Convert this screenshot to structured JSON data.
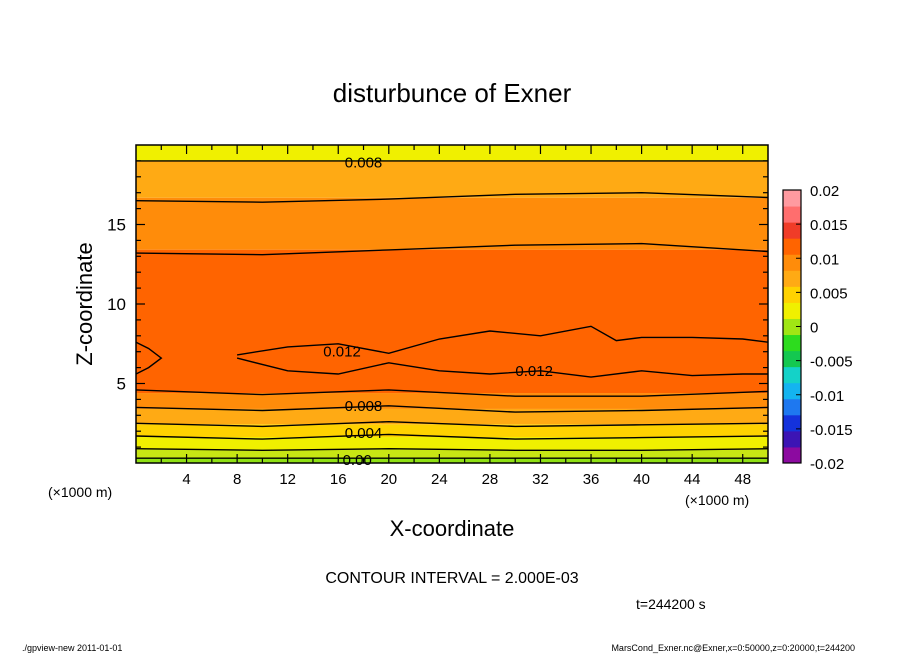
{
  "chart_data": {
    "type": "contour",
    "title": "disturbunce of Exner",
    "xlabel": "X-coordinate",
    "ylabel": "Z-coordinate",
    "x_unit": "(×1000 m)",
    "y_unit": "(×1000 m)",
    "xlim": [
      0,
      50
    ],
    "ylim": [
      0,
      20
    ],
    "x_ticks": [
      4,
      8,
      12,
      16,
      20,
      24,
      28,
      32,
      36,
      40,
      44,
      48
    ],
    "y_ticks": [
      5,
      10,
      15
    ],
    "contour_interval_text": "CONTOUR INTERVAL = 2.000E-03",
    "time_text": "t=244200 s",
    "colorbar": {
      "min": -0.02,
      "max": 0.02,
      "tick_labels": [
        "0.02",
        "0.015",
        "0.01",
        "0.005",
        "0",
        "-0.005",
        "-0.01",
        "-0.015",
        "-0.02"
      ],
      "colors": [
        "#8c0aa0",
        "#3c14b4",
        "#1432dc",
        "#1e78f0",
        "#14b4f0",
        "#14d2c8",
        "#14c850",
        "#2ddc1e",
        "#a0e614",
        "#f0f000",
        "#ffd200",
        "#ffaa14",
        "#ff8c0a",
        "#ff6400",
        "#f03c28",
        "#ff6e6e",
        "#ff9aa0"
      ]
    },
    "contour_labels": [
      {
        "text": "0.008",
        "x": 18.0,
        "z": 18.9
      },
      {
        "text": "0.012",
        "x": 16.3,
        "z": 7.0
      },
      {
        "text": "0.012",
        "x": 31.5,
        "z": 5.8
      },
      {
        "text": "0.008",
        "x": 18.0,
        "z": 3.6
      },
      {
        "text": "0.004",
        "x": 18.0,
        "z": 1.9
      },
      {
        "text": "0.00",
        "x": 17.5,
        "z": 0.2
      }
    ],
    "levels": [
      0.0,
      0.002,
      0.004,
      0.006,
      0.008,
      0.01,
      0.012,
      0.014
    ],
    "bands_bottom_to_top": [
      {
        "value": 0.001,
        "color": "#8fe014"
      },
      {
        "value": 0.003,
        "color": "#c8e614"
      },
      {
        "value": 0.005,
        "color": "#f0f000"
      },
      {
        "value": 0.007,
        "color": "#ffd200"
      },
      {
        "value": 0.009,
        "color": "#ffaa14"
      },
      {
        "value": 0.011,
        "color": "#ff8c0a"
      },
      {
        "value": 0.013,
        "color": "#ff6400"
      },
      {
        "value": 0.011,
        "color": "#ff8c0a"
      },
      {
        "value": 0.009,
        "color": "#ffaa14"
      },
      {
        "value": 0.007,
        "color": "#ffd200"
      },
      {
        "value": 0.005,
        "color": "#f0f000"
      }
    ],
    "contour_lines": [
      {
        "level": 0.0,
        "x": [
          0,
          50
        ],
        "z": [
          0.3,
          0.3
        ]
      },
      {
        "level": 0.002,
        "x": [
          0,
          10,
          20,
          30,
          40,
          50
        ],
        "z": [
          0.9,
          0.8,
          0.9,
          0.8,
          0.8,
          0.9
        ]
      },
      {
        "level": 0.004,
        "x": [
          0,
          10,
          20,
          30,
          40,
          50
        ],
        "z": [
          1.7,
          1.5,
          1.8,
          1.5,
          1.6,
          1.7
        ]
      },
      {
        "level": 0.006,
        "x": [
          0,
          10,
          20,
          30,
          40,
          50
        ],
        "z": [
          2.5,
          2.3,
          2.6,
          2.3,
          2.4,
          2.5
        ]
      },
      {
        "level": 0.008,
        "x": [
          0,
          10,
          20,
          30,
          40,
          50
        ],
        "z": [
          3.5,
          3.3,
          3.6,
          3.2,
          3.3,
          3.5
        ]
      },
      {
        "level": 0.01,
        "x": [
          0,
          10,
          20,
          30,
          40,
          50
        ],
        "z": [
          4.6,
          4.3,
          4.6,
          4.2,
          4.2,
          4.5
        ]
      },
      {
        "level": 0.012,
        "x": [
          8,
          12,
          16,
          20,
          24,
          28,
          32,
          36,
          38,
          40,
          44,
          48,
          50
        ],
        "z": [
          6.8,
          7.3,
          7.5,
          6.9,
          7.8,
          8.3,
          8.0,
          8.6,
          7.7,
          7.9,
          7.9,
          7.8,
          7.6
        ]
      },
      {
        "level": 0.012,
        "x": [
          8,
          12,
          16,
          20,
          24,
          28,
          32,
          36,
          40,
          44,
          48,
          50
        ],
        "z": [
          6.6,
          5.8,
          5.6,
          6.3,
          5.8,
          5.6,
          5.8,
          5.4,
          5.8,
          5.5,
          5.6,
          5.6
        ]
      },
      {
        "level": 0.012,
        "x": [
          0,
          1,
          2,
          1,
          0
        ],
        "z": [
          7.6,
          7.2,
          6.6,
          6.0,
          5.6
        ]
      },
      {
        "level": 0.008,
        "x": [
          0,
          10,
          20,
          30,
          40,
          50
        ],
        "z": [
          13.2,
          13.1,
          13.4,
          13.7,
          13.8,
          13.3
        ]
      },
      {
        "level": 0.006,
        "x": [
          0,
          10,
          20,
          30,
          40,
          50
        ],
        "z": [
          16.5,
          16.4,
          16.6,
          16.9,
          17.0,
          16.7
        ]
      },
      {
        "level": 0.008,
        "x": [
          0,
          25,
          50
        ],
        "z": [
          19.0,
          19.0,
          19.0
        ]
      }
    ]
  },
  "footer": {
    "left": "./gpview-new  2011-01-01",
    "right": "MarsCond_Exner.nc@Exner,x=0:50000,z=0:20000,t=244200"
  }
}
